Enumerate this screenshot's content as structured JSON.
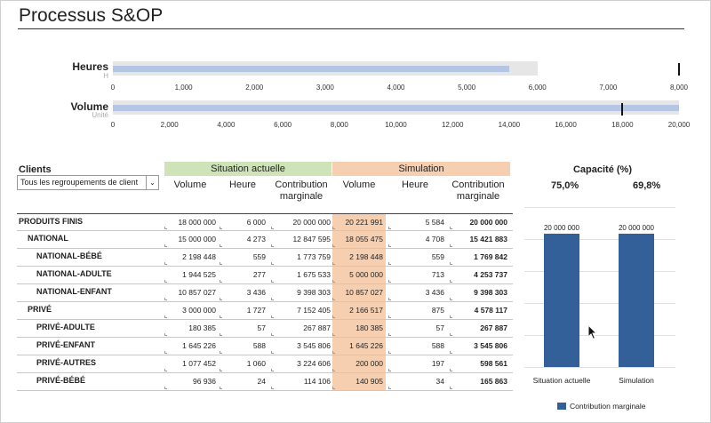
{
  "page_title": "Processus S&OP",
  "bullets": [
    {
      "label": "Heures",
      "sublabel": "H",
      "ticks": [
        "0",
        "1,000",
        "2,000",
        "3,000",
        "4,000",
        "5,000",
        "6,000",
        "7,000",
        "8,000"
      ],
      "max": 8000,
      "band_value": 6000,
      "bar_value": 5600,
      "target_value": 8000
    },
    {
      "label": "Volume",
      "sublabel": "Unité",
      "ticks": [
        "0",
        "2,000",
        "4,000",
        "6,000",
        "8,000",
        "10,000",
        "12,000",
        "14,000",
        "16,000",
        "18,000",
        "20,000"
      ],
      "max": 20000,
      "band_value": 20000,
      "bar_value": 20000,
      "target_value": 18000
    }
  ],
  "table": {
    "clients_label": "Clients",
    "client_select_value": "Tous les regroupements de client",
    "group_actuelle": "Situation actuelle",
    "group_simulation": "Simulation",
    "group_actuelle_color": "#cfe3b8",
    "group_simulation_color": "#f6cfb0",
    "col_volume": "Volume",
    "col_heure": "Heure",
    "col_contribution": "Contribution marginale",
    "rows": [
      {
        "name": "PRODUITS FINIS",
        "level": 0,
        "v1": "18 000 000",
        "h1": "6 000",
        "c1": "20 000 000",
        "v2": "20 221 991",
        "h2": "5 584",
        "c2": "20 000 000"
      },
      {
        "name": "NATIONAL",
        "level": 1,
        "v1": "15 000 000",
        "h1": "4 273",
        "c1": "12 847 595",
        "v2": "18 055 475",
        "h2": "4 708",
        "c2": "15 421 883"
      },
      {
        "name": "NATIONAL-BÉBÉ",
        "level": 2,
        "v1": "2 198 448",
        "h1": "559",
        "c1": "1 773 759",
        "v2": "2 198 448",
        "h2": "559",
        "c2": "1 769 842"
      },
      {
        "name": "NATIONAL-ADULTE",
        "level": 2,
        "v1": "1 944 525",
        "h1": "277",
        "c1": "1 675 533",
        "v2": "5 000 000",
        "h2": "713",
        "c2": "4 253 737"
      },
      {
        "name": "NATIONAL-ENFANT",
        "level": 2,
        "v1": "10 857 027",
        "h1": "3 436",
        "c1": "9 398 303",
        "v2": "10 857 027",
        "h2": "3 436",
        "c2": "9 398 303"
      },
      {
        "name": "PRIVÉ",
        "level": 1,
        "v1": "3 000 000",
        "h1": "1 727",
        "c1": "7 152 405",
        "v2": "2 166 517",
        "h2": "875",
        "c2": "4 578 117"
      },
      {
        "name": "PRIVÉ-ADULTE",
        "level": 2,
        "v1": "180 385",
        "h1": "57",
        "c1": "267 887",
        "v2": "180 385",
        "h2": "57",
        "c2": "267 887"
      },
      {
        "name": "PRIVÉ-ENFANT",
        "level": 2,
        "v1": "1 645 226",
        "h1": "588",
        "c1": "3 545 806",
        "v2": "1 645 226",
        "h2": "588",
        "c2": "3 545 806"
      },
      {
        "name": "PRIVÉ-AUTRES",
        "level": 2,
        "v1": "1 077 452",
        "h1": "1 060",
        "c1": "3 224 606",
        "v2": "200 000",
        "h2": "197",
        "c2": "598 561"
      },
      {
        "name": "PRIVÉ-BÉBÉ",
        "level": 2,
        "v1": "96 936",
        "h1": "24",
        "c1": "114 106",
        "v2": "140 905",
        "h2": "34",
        "c2": "165 863"
      }
    ]
  },
  "capacity": {
    "title": "Capacité (%)",
    "actuelle_pct": "75,0%",
    "simulation_pct": "69,8%"
  },
  "chart_data": {
    "type": "bar",
    "categories": [
      "Situation actuelle",
      "Simulation"
    ],
    "series": [
      {
        "name": "Contribution marginale",
        "values": [
          20000000,
          20000000
        ]
      }
    ],
    "value_labels": [
      "20 000 000",
      "20 000 000"
    ],
    "ylim": [
      0,
      24000000
    ],
    "grid": true,
    "legend_position": "bottom",
    "bar_color": "#34609a"
  }
}
